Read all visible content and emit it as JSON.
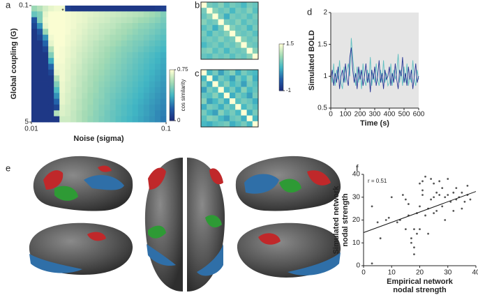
{
  "panel_labels": [
    "a",
    "b",
    "c",
    "d",
    "e",
    "f"
  ],
  "chart_data": [
    {
      "type": "heatmap",
      "x_label": "Noise (sigma)",
      "y_label": "Global coupling (G)",
      "annotation": "*",
      "xlim": [
        0.01,
        0.1
      ],
      "ylim": [
        0.1,
        5
      ],
      "xticks": [
        0.01,
        0.1
      ],
      "yticks": [
        0.1,
        5
      ],
      "log_x": true,
      "log_y": true,
      "colormap": [
        "#1c2a7a",
        "#225ea8",
        "#41b6c4",
        "#a1dab4",
        "#ffffd4"
      ],
      "clim": [
        0,
        0.75
      ],
      "colorbar_ticks": [
        0,
        0.75
      ],
      "colorbar_label": "cos similarity",
      "values": [
        [
          0.55,
          0.6,
          0.66,
          0.7,
          0.72,
          0.72,
          0.08,
          0.05,
          0.05,
          0.05,
          0.05,
          0.05,
          0.05,
          0.05,
          0.05,
          0.05,
          0.05,
          0.05,
          0.05,
          0.05,
          0.05,
          0.05,
          0.06,
          0.08
        ],
        [
          0.45,
          0.5,
          0.7,
          0.74,
          0.74,
          0.74,
          0.73,
          0.72,
          0.71,
          0.7,
          0.69,
          0.68,
          0.67,
          0.66,
          0.65,
          0.64,
          0.63,
          0.62,
          0.61,
          0.6,
          0.58,
          0.56,
          0.54,
          0.5
        ],
        [
          0.15,
          0.5,
          0.72,
          0.74,
          0.74,
          0.74,
          0.73,
          0.72,
          0.71,
          0.7,
          0.68,
          0.67,
          0.66,
          0.65,
          0.63,
          0.62,
          0.61,
          0.6,
          0.58,
          0.56,
          0.55,
          0.53,
          0.51,
          0.48
        ],
        [
          0.1,
          0.3,
          0.7,
          0.74,
          0.74,
          0.74,
          0.73,
          0.72,
          0.7,
          0.69,
          0.67,
          0.66,
          0.64,
          0.63,
          0.62,
          0.6,
          0.58,
          0.57,
          0.55,
          0.53,
          0.52,
          0.5,
          0.48,
          0.46
        ],
        [
          0.05,
          0.15,
          0.55,
          0.74,
          0.74,
          0.74,
          0.73,
          0.71,
          0.7,
          0.68,
          0.66,
          0.65,
          0.63,
          0.62,
          0.6,
          0.58,
          0.57,
          0.55,
          0.53,
          0.51,
          0.5,
          0.48,
          0.46,
          0.44
        ],
        [
          0.05,
          0.1,
          0.3,
          0.72,
          0.74,
          0.74,
          0.72,
          0.71,
          0.69,
          0.67,
          0.65,
          0.64,
          0.62,
          0.6,
          0.58,
          0.57,
          0.55,
          0.53,
          0.51,
          0.5,
          0.48,
          0.46,
          0.44,
          0.42
        ],
        [
          0.05,
          0.05,
          0.2,
          0.7,
          0.74,
          0.74,
          0.72,
          0.7,
          0.68,
          0.66,
          0.64,
          0.62,
          0.6,
          0.59,
          0.57,
          0.55,
          0.53,
          0.51,
          0.49,
          0.48,
          0.46,
          0.44,
          0.42,
          0.4
        ],
        [
          0.05,
          0.05,
          0.1,
          0.6,
          0.74,
          0.73,
          0.71,
          0.69,
          0.67,
          0.65,
          0.63,
          0.61,
          0.59,
          0.57,
          0.55,
          0.53,
          0.51,
          0.5,
          0.48,
          0.46,
          0.44,
          0.42,
          0.4,
          0.38
        ],
        [
          0.05,
          0.05,
          0.05,
          0.5,
          0.74,
          0.73,
          0.71,
          0.69,
          0.66,
          0.64,
          0.62,
          0.6,
          0.58,
          0.56,
          0.54,
          0.52,
          0.5,
          0.48,
          0.46,
          0.44,
          0.42,
          0.4,
          0.38,
          0.36
        ],
        [
          0.05,
          0.05,
          0.05,
          0.35,
          0.73,
          0.73,
          0.7,
          0.68,
          0.66,
          0.63,
          0.61,
          0.59,
          0.57,
          0.55,
          0.53,
          0.51,
          0.49,
          0.47,
          0.45,
          0.43,
          0.41,
          0.39,
          0.37,
          0.35
        ],
        [
          0.05,
          0.05,
          0.05,
          0.2,
          0.72,
          0.72,
          0.7,
          0.67,
          0.65,
          0.62,
          0.6,
          0.58,
          0.56,
          0.54,
          0.52,
          0.5,
          0.48,
          0.46,
          0.44,
          0.42,
          0.4,
          0.38,
          0.36,
          0.34
        ],
        [
          0.05,
          0.05,
          0.05,
          0.1,
          0.7,
          0.72,
          0.69,
          0.67,
          0.64,
          0.62,
          0.59,
          0.57,
          0.55,
          0.53,
          0.51,
          0.49,
          0.47,
          0.45,
          0.43,
          0.41,
          0.39,
          0.37,
          0.35,
          0.33
        ],
        [
          0.05,
          0.05,
          0.05,
          0.05,
          0.6,
          0.72,
          0.69,
          0.66,
          0.63,
          0.61,
          0.58,
          0.56,
          0.54,
          0.52,
          0.5,
          0.48,
          0.46,
          0.44,
          0.42,
          0.4,
          0.38,
          0.36,
          0.34,
          0.32
        ],
        [
          0.05,
          0.05,
          0.05,
          0.05,
          0.5,
          0.71,
          0.68,
          0.66,
          0.63,
          0.6,
          0.58,
          0.55,
          0.53,
          0.51,
          0.49,
          0.47,
          0.45,
          0.43,
          0.41,
          0.39,
          0.37,
          0.35,
          0.33,
          0.31
        ],
        [
          0.05,
          0.05,
          0.05,
          0.05,
          0.4,
          0.71,
          0.68,
          0.65,
          0.62,
          0.6,
          0.57,
          0.55,
          0.52,
          0.5,
          0.48,
          0.46,
          0.44,
          0.42,
          0.4,
          0.38,
          0.36,
          0.34,
          0.32,
          0.3
        ],
        [
          0.05,
          0.05,
          0.05,
          0.05,
          0.3,
          0.7,
          0.67,
          0.65,
          0.62,
          0.59,
          0.56,
          0.54,
          0.52,
          0.49,
          0.47,
          0.45,
          0.43,
          0.41,
          0.39,
          0.37,
          0.35,
          0.33,
          0.31,
          0.29
        ],
        [
          0.05,
          0.05,
          0.05,
          0.05,
          0.2,
          0.7,
          0.67,
          0.64,
          0.61,
          0.58,
          0.56,
          0.53,
          0.51,
          0.49,
          0.46,
          0.44,
          0.42,
          0.4,
          0.38,
          0.36,
          0.34,
          0.32,
          0.3,
          0.28
        ],
        [
          0.05,
          0.05,
          0.05,
          0.05,
          0.1,
          0.68,
          0.66,
          0.64,
          0.61,
          0.58,
          0.55,
          0.53,
          0.5,
          0.48,
          0.46,
          0.43,
          0.41,
          0.39,
          0.37,
          0.35,
          0.33,
          0.31,
          0.29,
          0.27
        ],
        [
          0.05,
          0.05,
          0.05,
          0.05,
          0.6,
          0.68,
          0.66,
          0.63,
          0.6,
          0.57,
          0.55,
          0.52,
          0.5,
          0.47,
          0.45,
          0.43,
          0.41,
          0.39,
          0.37,
          0.35,
          0.33,
          0.31,
          0.28,
          0.26
        ],
        [
          0.05,
          0.05,
          0.05,
          0.05,
          0.05,
          0.65,
          0.65,
          0.63,
          0.6,
          0.57,
          0.54,
          0.52,
          0.49,
          0.47,
          0.45,
          0.42,
          0.4,
          0.38,
          0.36,
          0.34,
          0.32,
          0.3,
          0.28,
          0.25
        ]
      ]
    },
    {
      "type": "matrix",
      "colormap": [
        "#1c2a7a",
        "#225ea8",
        "#41b6c4",
        "#a1dab4",
        "#ffffd4"
      ],
      "clim": [
        -1,
        1.5
      ],
      "colorbar_ticks": [
        -1,
        1.5
      ],
      "values": [
        [
          1.5,
          0.6,
          0.5,
          0.7,
          0.4,
          0.6,
          0.5,
          0.3,
          0.6,
          0.5
        ],
        [
          0.6,
          1.5,
          0.7,
          0.5,
          0.6,
          0.3,
          0.6,
          0.5,
          0.7,
          0.4
        ],
        [
          0.5,
          0.7,
          1.5,
          0.6,
          0.2,
          0.6,
          0.5,
          0.6,
          0.4,
          0.6
        ],
        [
          0.7,
          0.5,
          0.6,
          1.5,
          0.6,
          0.5,
          0.7,
          0.4,
          0.6,
          0.5
        ],
        [
          0.4,
          0.6,
          0.2,
          0.6,
          1.5,
          0.7,
          0.5,
          0.6,
          0.3,
          0.6
        ],
        [
          0.6,
          0.3,
          0.6,
          0.5,
          0.7,
          1.5,
          0.6,
          0.5,
          0.6,
          0.4
        ],
        [
          0.5,
          0.6,
          0.5,
          0.7,
          0.5,
          0.6,
          1.5,
          0.7,
          0.5,
          0.6
        ],
        [
          0.3,
          0.5,
          0.6,
          0.4,
          0.6,
          0.5,
          0.7,
          1.5,
          0.6,
          0.5
        ],
        [
          0.6,
          0.7,
          0.4,
          0.6,
          0.3,
          0.6,
          0.5,
          0.6,
          1.5,
          0.7
        ],
        [
          0.5,
          0.4,
          0.6,
          0.5,
          0.6,
          0.4,
          0.6,
          0.5,
          0.7,
          1.5
        ]
      ]
    },
    {
      "type": "matrix",
      "colormap": [
        "#1c2a7a",
        "#225ea8",
        "#41b6c4",
        "#a1dab4",
        "#ffffd4"
      ],
      "clim": [
        -1,
        1.5
      ],
      "values": [
        [
          1.5,
          0.3,
          0.6,
          0.1,
          0.5,
          0.7,
          0.2,
          0.6,
          0.4,
          0.3
        ],
        [
          0.3,
          1.5,
          0.2,
          0.6,
          0.4,
          0.1,
          0.6,
          0.3,
          0.7,
          0.2
        ],
        [
          0.6,
          0.2,
          1.5,
          0.4,
          0.7,
          0.3,
          0.5,
          0.1,
          0.6,
          0.4
        ],
        [
          0.1,
          0.6,
          0.4,
          1.5,
          0.3,
          0.6,
          0.2,
          0.7,
          0.3,
          0.5
        ],
        [
          0.5,
          0.4,
          0.7,
          0.3,
          1.5,
          0.2,
          0.6,
          0.4,
          0.1,
          0.6
        ],
        [
          0.7,
          0.1,
          0.3,
          0.6,
          0.2,
          1.5,
          0.4,
          0.6,
          0.5,
          0.2
        ],
        [
          0.2,
          0.6,
          0.5,
          0.2,
          0.6,
          0.4,
          1.5,
          0.3,
          0.6,
          0.4
        ],
        [
          0.6,
          0.3,
          0.1,
          0.7,
          0.4,
          0.6,
          0.3,
          1.5,
          0.2,
          0.6
        ],
        [
          0.4,
          0.7,
          0.6,
          0.3,
          0.1,
          0.5,
          0.6,
          0.2,
          1.5,
          0.3
        ],
        [
          0.3,
          0.2,
          0.4,
          0.5,
          0.6,
          0.2,
          0.4,
          0.6,
          0.3,
          1.5
        ]
      ]
    },
    {
      "type": "line",
      "x_label": "Time (s)",
      "y_label": "Simulated BOLD",
      "background": "#e5e5e5",
      "xlim": [
        0,
        600
      ],
      "ylim": [
        0.5,
        2
      ],
      "xticks": [
        0,
        100,
        200,
        300,
        400,
        500,
        600
      ],
      "yticks": [
        0.5,
        1,
        1.5,
        2
      ],
      "x": [
        0,
        10,
        20,
        30,
        40,
        50,
        60,
        70,
        80,
        90,
        100,
        110,
        120,
        130,
        140,
        150,
        160,
        170,
        180,
        190,
        200,
        210,
        220,
        230,
        240,
        250,
        260,
        270,
        280,
        290,
        300,
        310,
        320,
        330,
        340,
        350,
        360,
        370,
        380,
        390,
        400,
        410,
        420,
        430,
        440,
        450,
        460,
        470,
        480,
        490,
        500,
        510,
        520,
        530,
        540,
        550,
        560,
        570,
        580,
        590,
        600
      ],
      "series": [
        {
          "color": "#5fbfc0",
          "values": [
            1.05,
            0.9,
            1.2,
            0.85,
            1.1,
            0.95,
            1.25,
            0.9,
            0.8,
            1.15,
            0.9,
            1.1,
            1.2,
            1.0,
            1.6,
            1.3,
            1.05,
            0.85,
            1.15,
            0.9,
            1.1,
            0.8,
            1.2,
            0.95,
            0.85,
            1.1,
            0.9,
            1.3,
            0.85,
            1.05,
            0.9,
            1.2,
            0.95,
            0.85,
            1.1,
            0.9,
            1.25,
            0.9,
            1.05,
            0.85,
            0.9,
            1.2,
            0.85,
            1.1,
            0.95,
            1.05,
            1.35,
            0.9,
            1.1,
            0.85,
            1.15,
            0.9,
            1.2,
            0.85,
            1.0,
            0.9,
            1.25,
            0.95,
            0.85,
            1.1,
            0.95
          ]
        },
        {
          "color": "#253494",
          "values": [
            0.95,
            1.1,
            0.85,
            1.05,
            0.9,
            1.15,
            0.8,
            1.0,
            1.1,
            0.9,
            1.2,
            0.95,
            0.85,
            1.3,
            1.45,
            1.1,
            0.9,
            1.05,
            0.8,
            1.15,
            0.95,
            1.1,
            0.85,
            1.0,
            1.2,
            0.9,
            1.05,
            0.75,
            1.1,
            0.95,
            1.15,
            0.85,
            1.0,
            1.25,
            0.9,
            1.05,
            0.8,
            1.1,
            0.95,
            1.0,
            1.15,
            0.85,
            1.05,
            0.9,
            1.2,
            0.95,
            0.8,
            1.1,
            1.0,
            1.3,
            0.9,
            1.05,
            0.85,
            1.15,
            0.95,
            1.1,
            0.8,
            1.0,
            1.2,
            0.9,
            1.0
          ]
        }
      ]
    },
    {
      "type": "scatter",
      "x_label": [
        "Empirical network",
        "nodal strength"
      ],
      "y_label": [
        "Simulated network",
        "nodal strength"
      ],
      "annotation": "r = 0.51",
      "xlim": [
        0,
        40
      ],
      "ylim": [
        0,
        40
      ],
      "xticks": [
        0,
        10,
        20,
        30,
        40
      ],
      "yticks": [
        0,
        10,
        20,
        30,
        40
      ],
      "color": "#555555",
      "x": [
        3,
        3,
        5,
        6,
        8,
        9,
        10,
        12,
        13,
        14,
        15,
        15,
        16,
        16,
        17,
        17,
        18,
        18,
        18,
        19,
        19,
        20,
        20,
        20,
        21,
        21,
        21,
        22,
        22,
        23,
        23,
        24,
        24,
        25,
        25,
        25,
        26,
        26,
        27,
        27,
        28,
        28,
        29,
        29,
        30,
        30,
        31,
        32,
        32,
        33,
        33,
        34,
        35,
        35,
        36,
        37,
        37,
        38
      ],
      "y": [
        26,
        1,
        19,
        12,
        20,
        21,
        30,
        19,
        20,
        31,
        29,
        16,
        22,
        27,
        12,
        10,
        16,
        8,
        5,
        14,
        23,
        26,
        36,
        16,
        37,
        33,
        31,
        39,
        22,
        25,
        14,
        29,
        38,
        36,
        30,
        23,
        32,
        24,
        37,
        31,
        26,
        34,
        20,
        30,
        31,
        38,
        28,
        32,
        24,
        29,
        34,
        30,
        25,
        32,
        28,
        31,
        35,
        29
      ],
      "fit": {
        "x": [
          0,
          40
        ],
        "y": [
          14.5,
          32.5
        ]
      }
    }
  ]
}
